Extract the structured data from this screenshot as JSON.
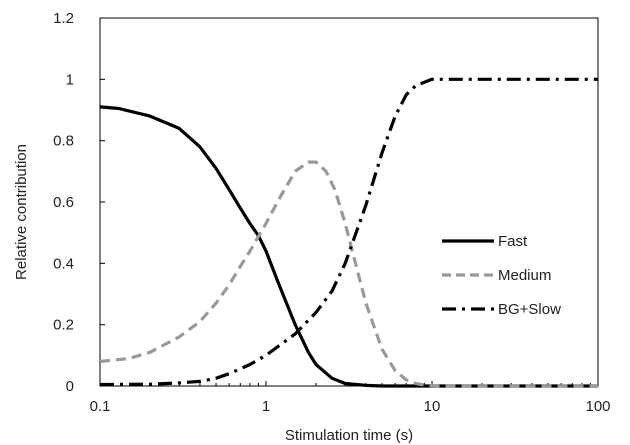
{
  "chart_data": {
    "type": "line",
    "xlabel": "Stimulation time (s)",
    "ylabel": "Relative  contribution",
    "xscale": "log",
    "xlim": [
      0.1,
      100
    ],
    "ylim": [
      0,
      1.2
    ],
    "x_ticks": [
      0.1,
      1,
      10,
      100
    ],
    "x_tick_labels": [
      "0.1",
      "1",
      "10",
      "100"
    ],
    "y_ticks": [
      0,
      0.2,
      0.4,
      0.6,
      0.8,
      1,
      1.2
    ],
    "y_tick_labels": [
      "0",
      "0.2",
      "0.4",
      "0.6",
      "0.8",
      "1",
      "1.2"
    ],
    "grid": false,
    "legend_position": "right",
    "series": [
      {
        "name": "Fast",
        "color": "#000000",
        "style": "solid",
        "x": [
          0.1,
          0.13,
          0.2,
          0.3,
          0.4,
          0.5,
          0.6,
          0.7,
          0.8,
          0.9,
          1,
          1.2,
          1.5,
          1.8,
          2,
          2.5,
          3,
          4,
          5,
          10,
          100
        ],
        "y": [
          0.91,
          0.905,
          0.88,
          0.84,
          0.78,
          0.71,
          0.64,
          0.58,
          0.53,
          0.49,
          0.44,
          0.33,
          0.2,
          0.11,
          0.07,
          0.025,
          0.008,
          0.002,
          0,
          0,
          0
        ]
      },
      {
        "name": "Medium",
        "color": "#999999",
        "style": "dashed",
        "x": [
          0.1,
          0.15,
          0.2,
          0.3,
          0.4,
          0.5,
          0.6,
          0.7,
          0.8,
          1,
          1.2,
          1.5,
          1.8,
          2,
          2.3,
          2.6,
          3,
          3.5,
          4,
          5,
          6,
          7,
          8,
          9,
          10,
          12,
          20,
          100
        ],
        "y": [
          0.08,
          0.09,
          0.11,
          0.16,
          0.21,
          0.27,
          0.33,
          0.39,
          0.44,
          0.53,
          0.61,
          0.7,
          0.73,
          0.73,
          0.7,
          0.64,
          0.53,
          0.39,
          0.27,
          0.12,
          0.05,
          0.02,
          0.008,
          0.003,
          0.001,
          0,
          0,
          0
        ]
      },
      {
        "name": "BG+Slow",
        "color": "#000000",
        "style": "dashdot",
        "x": [
          0.1,
          0.2,
          0.3,
          0.4,
          0.5,
          0.6,
          0.8,
          1,
          1.5,
          2,
          2.5,
          3,
          4,
          5,
          6,
          7,
          8,
          10,
          15,
          100
        ],
        "y": [
          0.005,
          0.006,
          0.01,
          0.015,
          0.025,
          0.04,
          0.07,
          0.1,
          0.17,
          0.24,
          0.31,
          0.4,
          0.59,
          0.76,
          0.88,
          0.95,
          0.98,
          1.0,
          1.0,
          1.0
        ]
      }
    ]
  }
}
